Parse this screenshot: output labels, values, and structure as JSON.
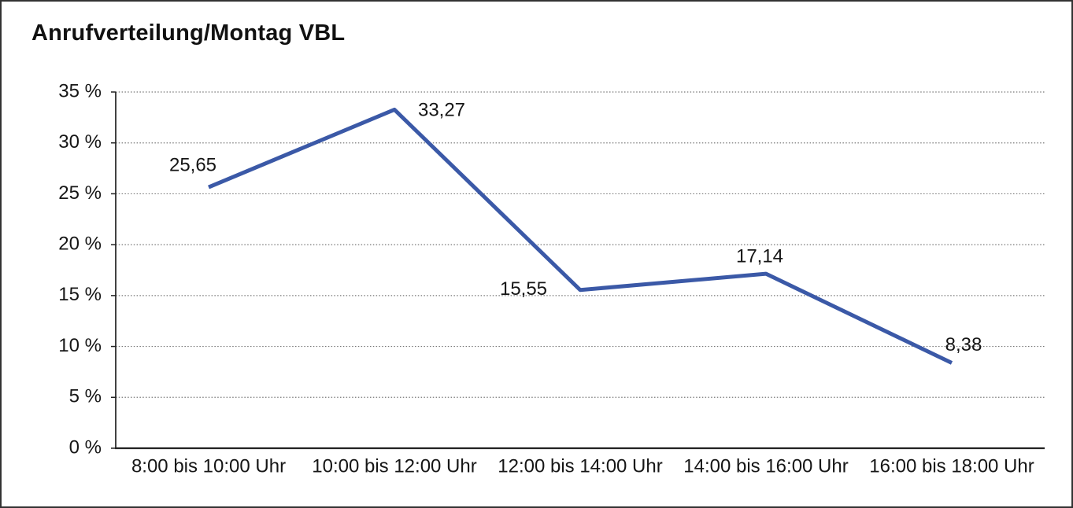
{
  "chart_data": {
    "type": "line",
    "title": "Anrufverteilung/Montag VBL",
    "categories": [
      "8:00 bis 10:00 Uhr",
      "10:00 bis 12:00 Uhr",
      "12:00 bis 14:00 Uhr",
      "14:00 bis 16:00 Uhr",
      "16:00 bis 18:00 Uhr"
    ],
    "values": [
      25.65,
      33.27,
      15.55,
      17.14,
      8.38
    ],
    "value_labels": [
      "25,65",
      "33,27",
      "15,55",
      "17,14",
      "8,38"
    ],
    "xlabel": "",
    "ylabel": "",
    "ylim": [
      0,
      35
    ],
    "ytick_step": 5,
    "ytick_labels": [
      "0 %",
      "5 %",
      "10 %",
      "15 %",
      "20 %",
      "25 %",
      "30 %",
      "35 %"
    ],
    "grid": "horizontal-dotted",
    "legend": "none",
    "line_color": "#3B59A7"
  }
}
